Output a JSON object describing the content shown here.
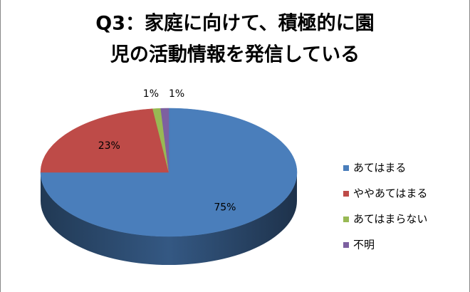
{
  "chart_data": {
    "type": "pie3d",
    "title": [
      "Q3：家庭に向けて、積極的に園",
      "児の活動情報を発信している"
    ],
    "categories": [
      "あてはまる",
      "ややあてはまる",
      "あてはまらない",
      "不明"
    ],
    "values": [
      75,
      23,
      1,
      1
    ],
    "value_labels": [
      "75%",
      "23%",
      "1%",
      "1%"
    ],
    "colors": [
      "#4a7ebb",
      "#be4b48",
      "#98b954",
      "#7d60a0"
    ],
    "legend": "right"
  }
}
